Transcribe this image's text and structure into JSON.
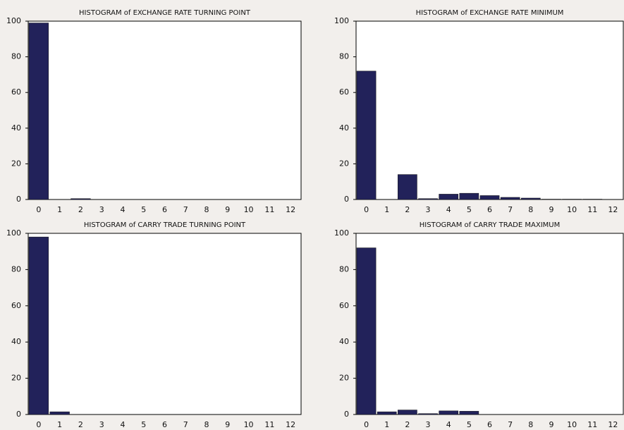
{
  "chart_data": [
    {
      "type": "bar",
      "title": "HISTOGRAM of EXCHANGE RATE TURNING POINT",
      "categories": [
        "0",
        "1",
        "2",
        "3",
        "4",
        "5",
        "6",
        "7",
        "8",
        "9",
        "10",
        "11",
        "12"
      ],
      "values": [
        99,
        0,
        0.5,
        0,
        0,
        0,
        0,
        0,
        0,
        0,
        0,
        0,
        0
      ],
      "color": "#22225a",
      "ylim": [
        0,
        100
      ],
      "yticks": [
        0,
        20,
        40,
        60,
        80,
        100
      ]
    },
    {
      "type": "bar",
      "title": "HISTOGRAM of EXCHANGE RATE MINIMUM",
      "categories": [
        "0",
        "1",
        "2",
        "3",
        "4",
        "5",
        "6",
        "7",
        "8",
        "9",
        "10",
        "11",
        "12"
      ],
      "values": [
        72,
        0,
        14,
        0.5,
        3,
        3.5,
        2.2,
        1.2,
        0.8,
        0.2,
        0.2,
        0.2,
        0
      ],
      "color": "#22225a",
      "ylim": [
        0,
        100
      ],
      "yticks": [
        0,
        20,
        40,
        60,
        80,
        100
      ]
    },
    {
      "type": "bar",
      "title": "HISTOGRAM of CARRY TRADE TURNING POINT",
      "categories": [
        "0",
        "1",
        "2",
        "3",
        "4",
        "5",
        "6",
        "7",
        "8",
        "9",
        "10",
        "11",
        "12"
      ],
      "values": [
        98,
        1.5,
        0,
        0,
        0,
        0,
        0,
        0,
        0,
        0,
        0,
        0,
        0
      ],
      "color": "#22225a",
      "ylim": [
        0,
        100
      ],
      "yticks": [
        0,
        20,
        40,
        60,
        80,
        100
      ]
    },
    {
      "type": "bar",
      "title": "HISTOGRAM of CARRY TRADE MAXIMUM",
      "categories": [
        "0",
        "1",
        "2",
        "3",
        "4",
        "5",
        "6",
        "7",
        "8",
        "9",
        "10",
        "11",
        "12"
      ],
      "values": [
        92,
        1.5,
        2.5,
        0.5,
        2,
        1.8,
        0,
        0,
        0,
        0,
        0,
        0,
        0
      ],
      "color": "#22225a",
      "ylim": [
        0,
        100
      ],
      "yticks": [
        0,
        20,
        40,
        60,
        80,
        100
      ]
    }
  ]
}
